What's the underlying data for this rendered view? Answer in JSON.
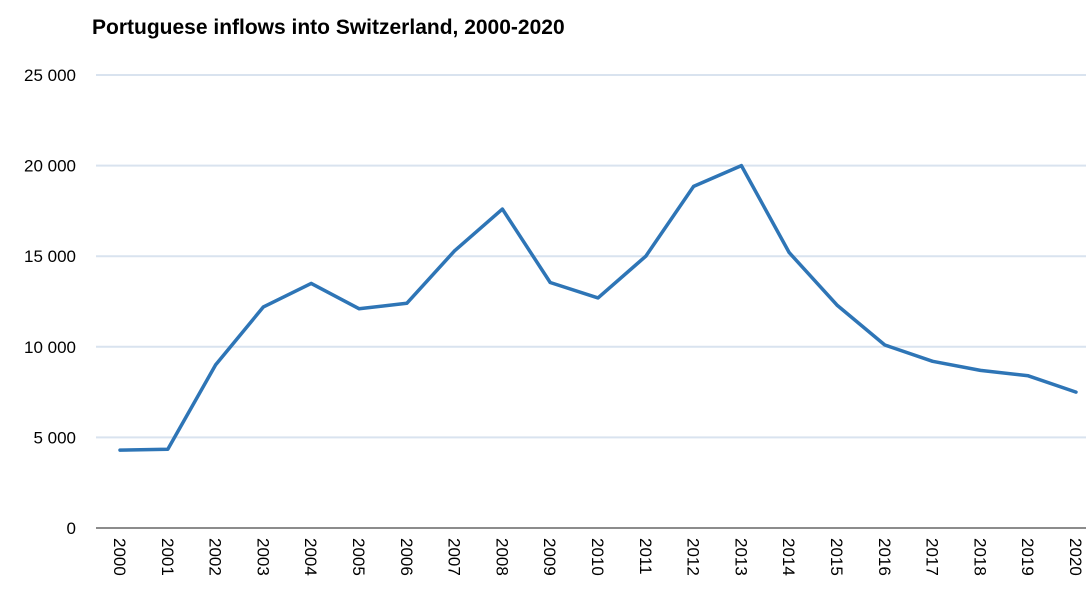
{
  "chart_data": {
    "type": "line",
    "title": "Portuguese inflows into Switzerland, 2000-2020",
    "xlabel": "",
    "ylabel": "",
    "categories": [
      "2000",
      "2001",
      "2002",
      "2003",
      "2004",
      "2005",
      "2006",
      "2007",
      "2008",
      "2009",
      "2010",
      "2011",
      "2012",
      "2013",
      "2014",
      "2015",
      "2016",
      "2017",
      "2018",
      "2019",
      "2020"
    ],
    "series": [
      {
        "values": [
          4300,
          4350,
          9000,
          12200,
          13500,
          12100,
          12400,
          15300,
          17600,
          13550,
          12700,
          15000,
          18850,
          20000,
          15200,
          12300,
          10100,
          9200,
          8700,
          8400,
          7500
        ]
      }
    ],
    "ylim": [
      0,
      25000
    ],
    "yticks": [
      0,
      5000,
      10000,
      15000,
      20000,
      25000
    ],
    "ytick_labels": [
      "0",
      "5 000",
      "10 000",
      "15 000",
      "20 000",
      "25 000"
    ],
    "grid": true,
    "legend": "none",
    "colors": {
      "line": "#2E75B6",
      "grid": "#D9E3EF",
      "axis": "#8C8C8C",
      "text": "#000000"
    }
  }
}
